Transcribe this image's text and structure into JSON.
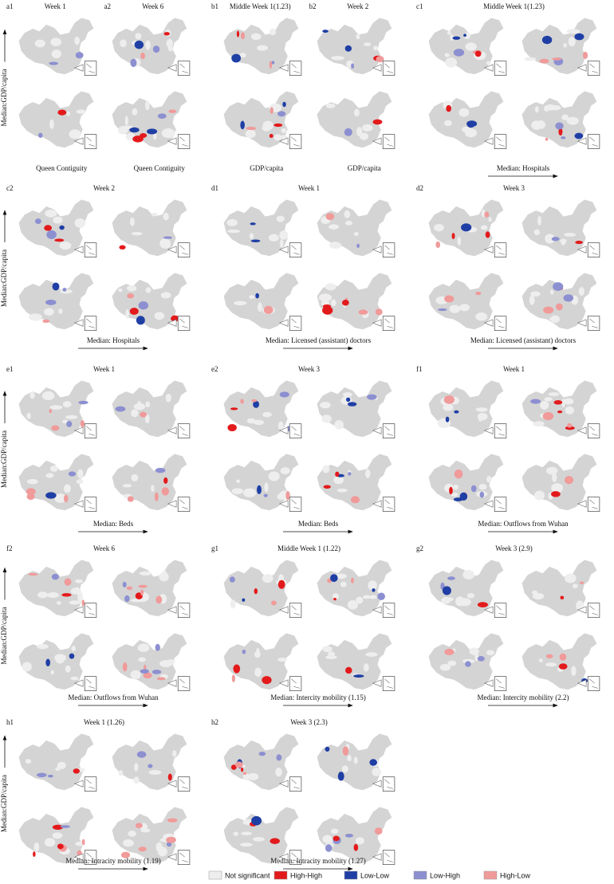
{
  "rows": [
    {
      "y_label": "Median:GDP/capita",
      "panels": [
        {
          "columns": [
            {
              "tag": "a1",
              "title": "Week 1",
              "x_label": "Queen Contiguity"
            },
            {
              "tag": "a2",
              "title": "Week 6",
              "x_label": "Queen Contiguity"
            }
          ]
        },
        {
          "columns": [
            {
              "tag": "b1",
              "title": "Middle Week 1(1.23)",
              "x_label": "GDP/capita"
            },
            {
              "tag": "b2",
              "title": "Week 2",
              "x_label": "GDP/capita"
            }
          ]
        },
        {
          "columns": [
            {
              "tag": "c1",
              "title": "Middle Week 1(1.23)",
              "x_label": "Median: Hospitals"
            }
          ]
        }
      ]
    },
    {
      "y_label": "Median:GDP/capita",
      "panels": [
        {
          "columns": [
            {
              "tag": "c2",
              "title": "Week 2",
              "x_label": "Median: Hospitals"
            }
          ]
        },
        {
          "columns": [
            {
              "tag": "d1",
              "title": "Week 1",
              "x_label": "Median: Licensed (assistant) doctors"
            }
          ]
        },
        {
          "columns": [
            {
              "tag": "d2",
              "title": "Week 3",
              "x_label": "Median: Licensed (assistant) doctors"
            }
          ]
        }
      ]
    },
    {
      "y_label": "Median:GDP/capita",
      "panels": [
        {
          "columns": [
            {
              "tag": "e1",
              "title": "Week 1",
              "x_label": "Median: Beds"
            }
          ]
        },
        {
          "columns": [
            {
              "tag": "e2",
              "title": "Week 3",
              "x_label": "Median: Beds"
            }
          ]
        },
        {
          "columns": [
            {
              "tag": "f1",
              "title": "Week 1",
              "x_label": "Median: Outflows from Wuhan"
            }
          ]
        }
      ]
    },
    {
      "y_label": "Median:GDP/capita",
      "panels": [
        {
          "columns": [
            {
              "tag": "f2",
              "title": "Week 6",
              "x_label": "Median: Outflows from Wuhan"
            }
          ]
        },
        {
          "columns": [
            {
              "tag": "g1",
              "title": "Middle Week 1 (1.22)",
              "x_label": "Median: Intercity mobility (1.15)"
            }
          ]
        },
        {
          "columns": [
            {
              "tag": "g2",
              "title": "Week 3 (2.9)",
              "x_label": "Median: Intercity mobility (2.2)"
            }
          ]
        }
      ]
    },
    {
      "y_label": "Median:GDP/capita",
      "panels": [
        {
          "columns": [
            {
              "tag": "h1",
              "title": "Week 1 (1.26)",
              "x_label": "Median: Intracity mobility (1.19)"
            }
          ]
        },
        {
          "columns": [
            {
              "tag": "h2",
              "title": "Week 3 (2.3)",
              "x_label": "Median: Intracity mobility (1.27)"
            }
          ]
        }
      ]
    }
  ],
  "legend": [
    {
      "label": "Not significant",
      "color": "#eeeeee"
    },
    {
      "label": "High-High",
      "color": "#e31a1c"
    },
    {
      "label": "Low-Low",
      "color": "#1f3fa5"
    },
    {
      "label": "Low-High",
      "color": "#8c8fd0"
    },
    {
      "label": "High-Low",
      "color": "#f09a9a"
    }
  ]
}
